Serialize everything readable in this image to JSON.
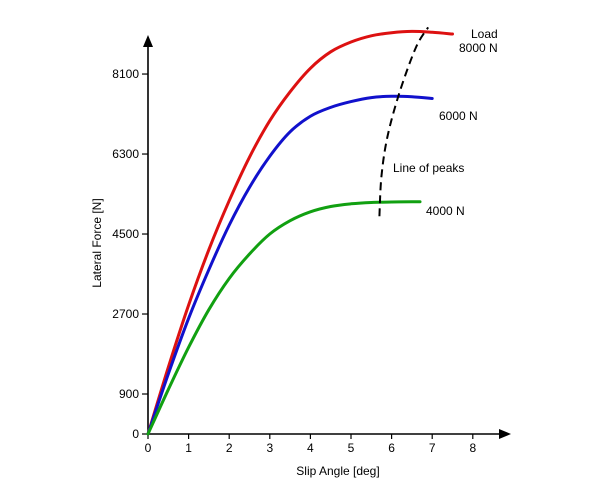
{
  "chart_data": {
    "type": "line",
    "title": "",
    "xlabel": "Slip Angle [deg]",
    "ylabel": "Lateral Force [N]",
    "xlim": [
      0,
      8.8
    ],
    "ylim": [
      0,
      8900
    ],
    "x_ticks": [
      0,
      1,
      2,
      3,
      4,
      5,
      6,
      7,
      8
    ],
    "y_ticks": [
      0,
      900,
      2700,
      4500,
      6300,
      8100
    ],
    "grid": false,
    "legend_title": "Load",
    "series": [
      {
        "name": "8000 N",
        "color": "#dd1111",
        "x": [
          0,
          0.5,
          1,
          1.5,
          2,
          2.5,
          3,
          3.5,
          4,
          4.5,
          5,
          5.5,
          6,
          6.5,
          7,
          7.5
        ],
        "y": [
          0,
          1500,
          2900,
          4150,
          5250,
          6230,
          7050,
          7700,
          8230,
          8600,
          8820,
          8960,
          9030,
          9060,
          9040,
          9000
        ]
      },
      {
        "name": "6000 N",
        "color": "#1111cc",
        "x": [
          0,
          0.5,
          1,
          1.5,
          2,
          2.5,
          3,
          3.5,
          4,
          4.5,
          5,
          5.5,
          6,
          6.5,
          7
        ],
        "y": [
          0,
          1350,
          2600,
          3700,
          4700,
          5550,
          6250,
          6800,
          7150,
          7350,
          7480,
          7570,
          7600,
          7590,
          7550
        ]
      },
      {
        "name": "4000 N",
        "color": "#11a011",
        "x": [
          0,
          0.5,
          1,
          1.5,
          2,
          2.5,
          3,
          3.5,
          4,
          4.5,
          5,
          5.5,
          6,
          6.5,
          6.7
        ],
        "y": [
          0,
          1000,
          1950,
          2800,
          3500,
          4050,
          4500,
          4800,
          5000,
          5120,
          5180,
          5210,
          5220,
          5225,
          5225
        ]
      }
    ],
    "line_of_peaks": {
      "label": "Line of peaks",
      "x": [
        5.7,
        5.75,
        5.9,
        6.2,
        6.6,
        6.9
      ],
      "y": [
        4900,
        5800,
        6700,
        7700,
        8700,
        9150
      ]
    }
  }
}
